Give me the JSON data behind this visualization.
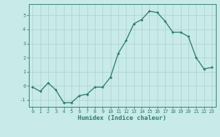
{
  "xlabel": "Humidex (Indice chaleur)",
  "ylabel": "",
  "x": [
    0,
    1,
    2,
    3,
    4,
    5,
    6,
    7,
    8,
    9,
    10,
    11,
    12,
    13,
    14,
    15,
    16,
    17,
    18,
    19,
    20,
    21,
    22,
    23
  ],
  "y": [
    -0.1,
    -0.4,
    0.2,
    -0.3,
    -1.2,
    -1.2,
    -0.7,
    -0.6,
    -0.1,
    -0.1,
    0.6,
    2.3,
    3.2,
    4.4,
    4.7,
    5.3,
    5.2,
    4.6,
    3.8,
    3.8,
    3.5,
    2.0,
    1.2,
    1.3
  ],
  "line_color": "#2e7d6e",
  "marker": "D",
  "marker_size": 1.8,
  "bg_color": "#c8eae8",
  "grid_color": "#aed4ce",
  "axis_color": "#2e7d6e",
  "spine_color": "#2e7d6e",
  "ylim": [
    -1.5,
    5.8
  ],
  "xlim": [
    -0.5,
    23.5
  ],
  "yticks": [
    -1,
    0,
    1,
    2,
    3,
    4,
    5
  ],
  "xticks": [
    0,
    1,
    2,
    3,
    4,
    5,
    6,
    7,
    8,
    9,
    10,
    11,
    12,
    13,
    14,
    15,
    16,
    17,
    18,
    19,
    20,
    21,
    22,
    23
  ],
  "tick_fontsize": 5.0,
  "xlabel_fontsize": 6.5,
  "linewidth": 1.0
}
